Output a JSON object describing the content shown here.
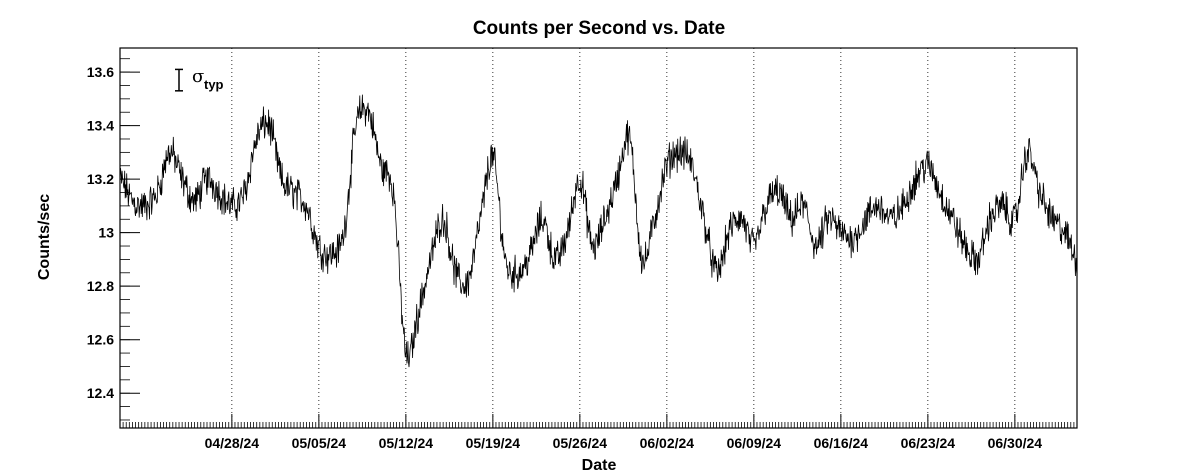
{
  "chart_data": {
    "type": "line",
    "title": "Counts per Second vs. Date",
    "xlabel": "Date",
    "ylabel": "Counts/sec",
    "xlim": [
      "2024-04-19",
      "2024-07-05"
    ],
    "ylim": [
      12.27,
      13.69
    ],
    "grid": "vertical dotted lines at date ticks",
    "x_ticks": [
      "04/28/24",
      "05/05/24",
      "05/12/24",
      "05/19/24",
      "05/26/24",
      "06/02/24",
      "06/09/24",
      "06/16/24",
      "06/23/24",
      "06/30/24"
    ],
    "y_ticks": [
      "12.4",
      "12.6",
      "12.8",
      "13",
      "13.2",
      "13.4",
      "13.6"
    ],
    "annotation": {
      "symbol": "σ",
      "subscript": "typ",
      "error_bar_half_width": 0.04
    },
    "series": [
      {
        "x": [
          "2024-04-19",
          "2024-04-20",
          "2024-04-21",
          "2024-04-22",
          "2024-04-23",
          "2024-04-24",
          "2024-04-25",
          "2024-04-26",
          "2024-04-27",
          "2024-04-28",
          "2024-04-29",
          "2024-04-30",
          "2024-05-01",
          "2024-05-02",
          "2024-05-03",
          "2024-05-04",
          "2024-05-05",
          "2024-05-06",
          "2024-05-07",
          "2024-05-08",
          "2024-05-09",
          "2024-05-10",
          "2024-05-11",
          "2024-05-12",
          "2024-05-13",
          "2024-05-14",
          "2024-05-15",
          "2024-05-16",
          "2024-05-17",
          "2024-05-18",
          "2024-05-19",
          "2024-05-20",
          "2024-05-21",
          "2024-05-22",
          "2024-05-23",
          "2024-05-24",
          "2024-05-25",
          "2024-05-26",
          "2024-05-27",
          "2024-05-28",
          "2024-05-29",
          "2024-05-30",
          "2024-05-31",
          "2024-06-01",
          "2024-06-02",
          "2024-06-03",
          "2024-06-04",
          "2024-06-05",
          "2024-06-06",
          "2024-06-07",
          "2024-06-08",
          "2024-06-09",
          "2024-06-10",
          "2024-06-11",
          "2024-06-12",
          "2024-06-13",
          "2024-06-14",
          "2024-06-15",
          "2024-06-16",
          "2024-06-17",
          "2024-06-18",
          "2024-06-19",
          "2024-06-20",
          "2024-06-21",
          "2024-06-22",
          "2024-06-23",
          "2024-06-24",
          "2024-06-25",
          "2024-06-26",
          "2024-06-27",
          "2024-06-28",
          "2024-06-29",
          "2024-06-30",
          "2024-07-01",
          "2024-07-02",
          "2024-07-03",
          "2024-07-04",
          "2024-07-05"
        ],
        "y": [
          13.2,
          13.12,
          13.1,
          13.15,
          13.3,
          13.2,
          13.12,
          13.2,
          13.15,
          13.1,
          13.15,
          13.35,
          13.4,
          13.2,
          13.15,
          13.1,
          12.95,
          12.92,
          13.0,
          13.4,
          13.45,
          13.25,
          13.15,
          12.55,
          12.7,
          12.9,
          13.05,
          12.85,
          12.82,
          13.05,
          13.28,
          12.9,
          12.85,
          12.92,
          13.05,
          12.9,
          13.0,
          13.2,
          12.95,
          13.05,
          13.2,
          13.35,
          12.9,
          13.05,
          13.25,
          13.3,
          13.25,
          13.05,
          12.85,
          13.0,
          13.05,
          12.95,
          13.1,
          13.15,
          13.05,
          13.1,
          12.95,
          13.05,
          13.0,
          12.98,
          13.05,
          13.1,
          13.05,
          13.1,
          13.2,
          13.25,
          13.15,
          13.05,
          12.95,
          12.9,
          13.05,
          13.1,
          13.05,
          13.3,
          13.15,
          13.05,
          13.0,
          12.9
        ]
      }
    ]
  }
}
